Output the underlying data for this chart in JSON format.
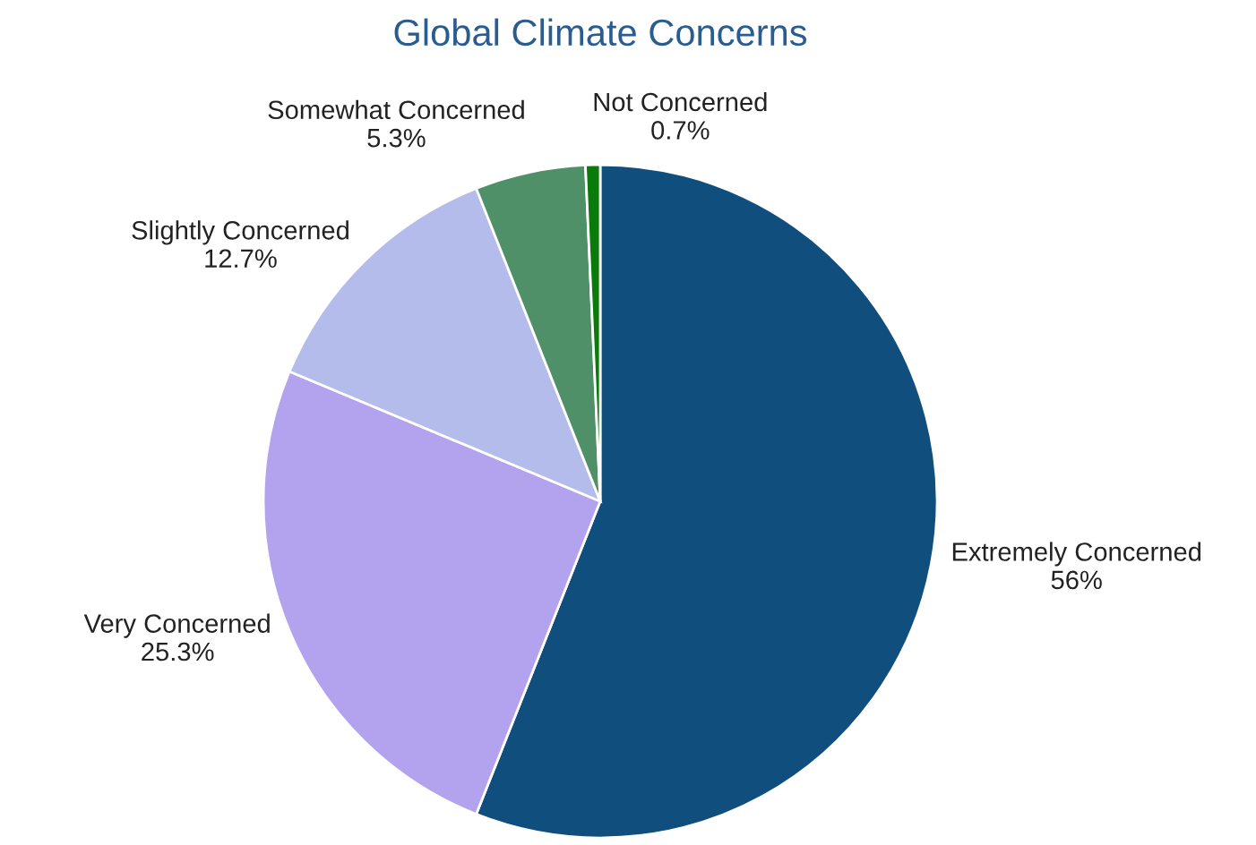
{
  "chart_data": {
    "type": "pie",
    "title": "Global Climate Concerns",
    "categories": [
      "Extremely Concerned",
      "Very Concerned",
      "Slightly Concerned",
      "Somewhat Concerned",
      "Not Concerned"
    ],
    "values": [
      56,
      25.3,
      12.7,
      5.3,
      0.7
    ],
    "value_labels": [
      "56%",
      "25.3%",
      "12.7%",
      "5.3%",
      "0.7%"
    ],
    "colors": [
      "#104e7e",
      "#b3a3ee",
      "#b3bcea",
      "#4f9068",
      "#0a7a0a"
    ],
    "legend": false
  }
}
